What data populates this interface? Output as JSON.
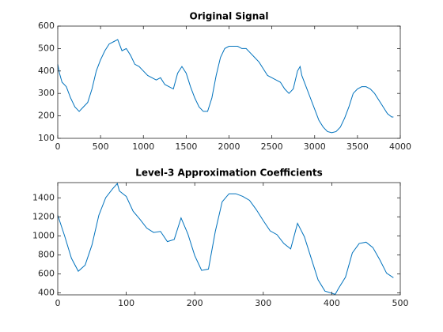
{
  "chart_data": [
    {
      "type": "line",
      "title": "Original Signal",
      "color": "#0072bd",
      "x": [
        0,
        20,
        50,
        100,
        150,
        200,
        250,
        300,
        350,
        400,
        450,
        500,
        550,
        600,
        650,
        700,
        720,
        750,
        800,
        850,
        900,
        950,
        1000,
        1050,
        1100,
        1150,
        1200,
        1250,
        1300,
        1350,
        1400,
        1450,
        1500,
        1550,
        1600,
        1650,
        1700,
        1750,
        1800,
        1850,
        1900,
        1950,
        2000,
        2050,
        2100,
        2150,
        2200,
        2250,
        2300,
        2350,
        2400,
        2450,
        2500,
        2550,
        2600,
        2650,
        2700,
        2750,
        2800,
        2830,
        2850,
        2900,
        2950,
        3000,
        3050,
        3100,
        3150,
        3200,
        3250,
        3300,
        3350,
        3400,
        3450,
        3500,
        3550,
        3600,
        3650,
        3700,
        3750,
        3800,
        3850,
        3900,
        3920
      ],
      "values": [
        430,
        390,
        350,
        330,
        280,
        240,
        220,
        240,
        260,
        320,
        400,
        450,
        490,
        520,
        530,
        540,
        520,
        490,
        500,
        470,
        430,
        420,
        400,
        380,
        370,
        360,
        370,
        340,
        330,
        320,
        390,
        420,
        390,
        330,
        280,
        240,
        220,
        220,
        280,
        380,
        460,
        500,
        510,
        510,
        510,
        500,
        500,
        480,
        460,
        440,
        410,
        380,
        370,
        360,
        350,
        320,
        300,
        320,
        400,
        420,
        380,
        330,
        280,
        230,
        180,
        150,
        130,
        125,
        130,
        150,
        190,
        240,
        300,
        320,
        330,
        330,
        320,
        300,
        270,
        240,
        210,
        195,
        195
      ],
      "xlim": [
        0,
        4000
      ],
      "xticks": [
        0,
        500,
        1000,
        1500,
        2000,
        2500,
        3000,
        3500,
        4000
      ],
      "ylim": [
        100,
        600
      ],
      "yticks": [
        100,
        200,
        300,
        400,
        500,
        600
      ]
    },
    {
      "type": "line",
      "title": "Level-3 Approximation Coefficients",
      "color": "#0072bd",
      "x": [
        0,
        10,
        20,
        30,
        40,
        50,
        60,
        70,
        80,
        87,
        90,
        100,
        110,
        120,
        130,
        140,
        150,
        160,
        170,
        180,
        190,
        200,
        210,
        220,
        230,
        240,
        250,
        260,
        270,
        280,
        290,
        300,
        310,
        320,
        330,
        340,
        350,
        360,
        370,
        380,
        390,
        405,
        410,
        420,
        430,
        440,
        450,
        460,
        470,
        480,
        490
      ],
      "values": [
        1217,
        1000,
        764,
        628,
        693,
        906,
        1217,
        1401,
        1494,
        1550,
        1472,
        1415,
        1259,
        1174,
        1081,
        1036,
        1047,
        940,
        962,
        1189,
        1019,
        792,
        637,
        651,
        1047,
        1358,
        1443,
        1443,
        1415,
        1373,
        1274,
        1160,
        1053,
        1013,
        920,
        863,
        1132,
        991,
        764,
        538,
        420,
        385,
        450,
        566,
        821,
        920,
        934,
        877,
        750,
        608,
        560
      ],
      "xlim": [
        0,
        500
      ],
      "xticks": [
        0,
        100,
        200,
        300,
        400,
        500
      ],
      "ylim": [
        380,
        1560
      ],
      "yticks": [
        400,
        600,
        800,
        1000,
        1200,
        1400
      ]
    }
  ]
}
